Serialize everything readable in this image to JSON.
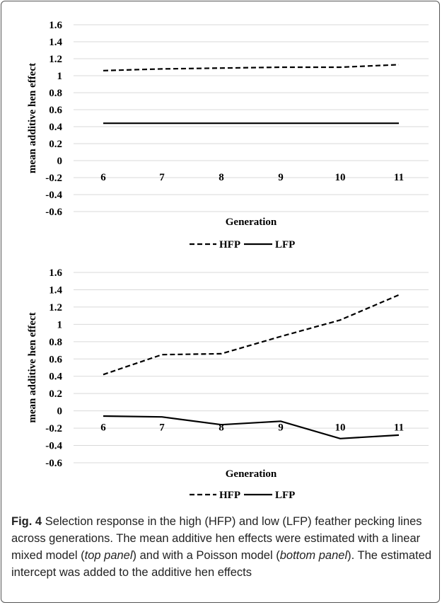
{
  "chart_data": [
    {
      "type": "line",
      "panel": "top",
      "xlabel": "Generation",
      "ylabel": "mean additive hen effect",
      "categories": [
        "6",
        "7",
        "8",
        "9",
        "10",
        "11"
      ],
      "ylim": [
        -0.6,
        1.6
      ],
      "yticks": [
        "1.6",
        "1.4",
        "1.2",
        "1",
        "0.8",
        "0.6",
        "0.4",
        "0.2",
        "0",
        "-0.2",
        "-0.4",
        "-0.6"
      ],
      "grid": true,
      "legend_position": "bottom",
      "series": [
        {
          "name": "HFP",
          "style": "dashed",
          "values": [
            1.06,
            1.08,
            1.09,
            1.1,
            1.1,
            1.13
          ]
        },
        {
          "name": "LFP",
          "style": "solid",
          "values": [
            0.44,
            0.44,
            0.44,
            0.44,
            0.44,
            0.44
          ]
        }
      ]
    },
    {
      "type": "line",
      "panel": "bottom",
      "xlabel": "Generation",
      "ylabel": "mean additive hen effect",
      "categories": [
        "6",
        "7",
        "8",
        "9",
        "10",
        "11"
      ],
      "ylim": [
        -0.6,
        1.6
      ],
      "yticks": [
        "1.6",
        "1.4",
        "1.2",
        "1",
        "0.8",
        "0.6",
        "0.4",
        "0.2",
        "0",
        "-0.2",
        "-0.4",
        "-0.6"
      ],
      "grid": true,
      "legend_position": "bottom",
      "series": [
        {
          "name": "HFP",
          "style": "dashed",
          "values": [
            0.42,
            0.65,
            0.66,
            0.86,
            1.05,
            1.34
          ]
        },
        {
          "name": "LFP",
          "style": "solid",
          "values": [
            -0.06,
            -0.07,
            -0.16,
            -0.12,
            -0.32,
            -0.28
          ]
        }
      ]
    }
  ],
  "caption": {
    "fig_label": "Fig. 4",
    "text_1": "Selection response in the high (HFP) and low (LFP) feather pecking lines across generations. The mean additive hen effects were estimated with a linear mixed model (",
    "em_1": "top panel",
    "text_2": ") and with a Poisson model (",
    "em_2": "bottom panel",
    "text_3": "). The estimated intercept was added to the additive hen effects"
  },
  "colors": {
    "line": "#000000",
    "grid": "#d9d9d9",
    "border": "#555555"
  }
}
